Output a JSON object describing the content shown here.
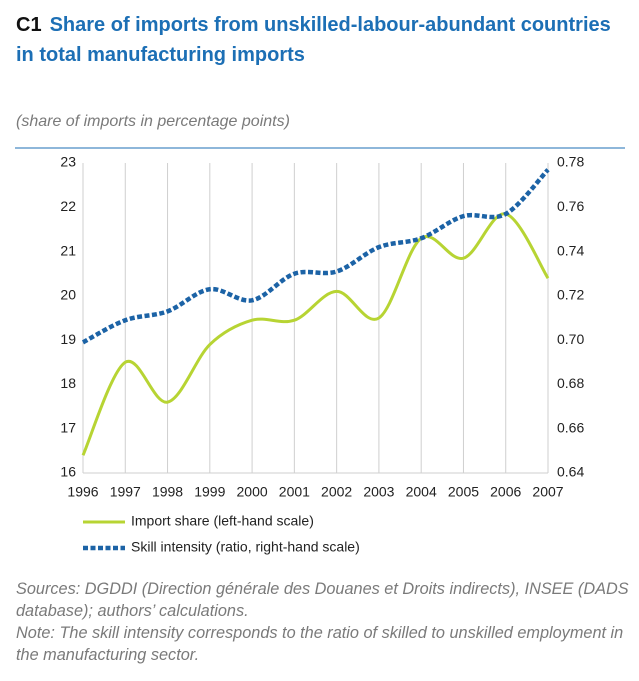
{
  "chart_data": {
    "type": "line",
    "label": "C1",
    "title": "Share of imports from unskilled-labour-abundant countries in total manufacturing imports",
    "subtitle": "(share of imports in percentage points)",
    "x": [
      1996,
      1997,
      1998,
      1999,
      2000,
      2001,
      2002,
      2003,
      2004,
      2005,
      2006,
      2007
    ],
    "xlim": [
      1996,
      2007
    ],
    "xticks": [
      1996,
      1997,
      1998,
      1999,
      2000,
      2001,
      2002,
      2003,
      2004,
      2005,
      2006,
      2007
    ],
    "ylim": [
      16,
      23
    ],
    "yticks": [
      16,
      17,
      18,
      19,
      20,
      21,
      22,
      23
    ],
    "y2lim": [
      0.64,
      0.78
    ],
    "y2ticks": [
      0.64,
      0.66,
      0.68,
      {
        "value": 0.7,
        "label": "0.70"
      },
      0.72,
      0.74,
      0.76,
      0.78
    ],
    "grid": true,
    "series": [
      {
        "name": "Import share (left-hand scale)",
        "color": "#b7d433",
        "style": "solid",
        "values": [
          16.4,
          18.5,
          17.6,
          18.9,
          19.45,
          19.45,
          20.1,
          19.5,
          21.3,
          20.85,
          21.85,
          20.4
        ]
      },
      {
        "name": "Skill intensity (ratio, right-hand scale)",
        "color": "#1c63a6",
        "style": "dashed",
        "axis": "y2",
        "values": [
          0.699,
          0.709,
          0.713,
          0.723,
          0.718,
          0.73,
          0.731,
          0.742,
          0.746,
          0.756,
          0.757,
          0.777
        ]
      }
    ],
    "source": "Sources: DGDDI (Direction générale des Douanes et Droits indirects), INSEE (DADS database); authors’ calculations.",
    "note": "Note: The skill intensity corresponds to the ratio of skilled to unskilled employment in the manufacturing sector."
  }
}
